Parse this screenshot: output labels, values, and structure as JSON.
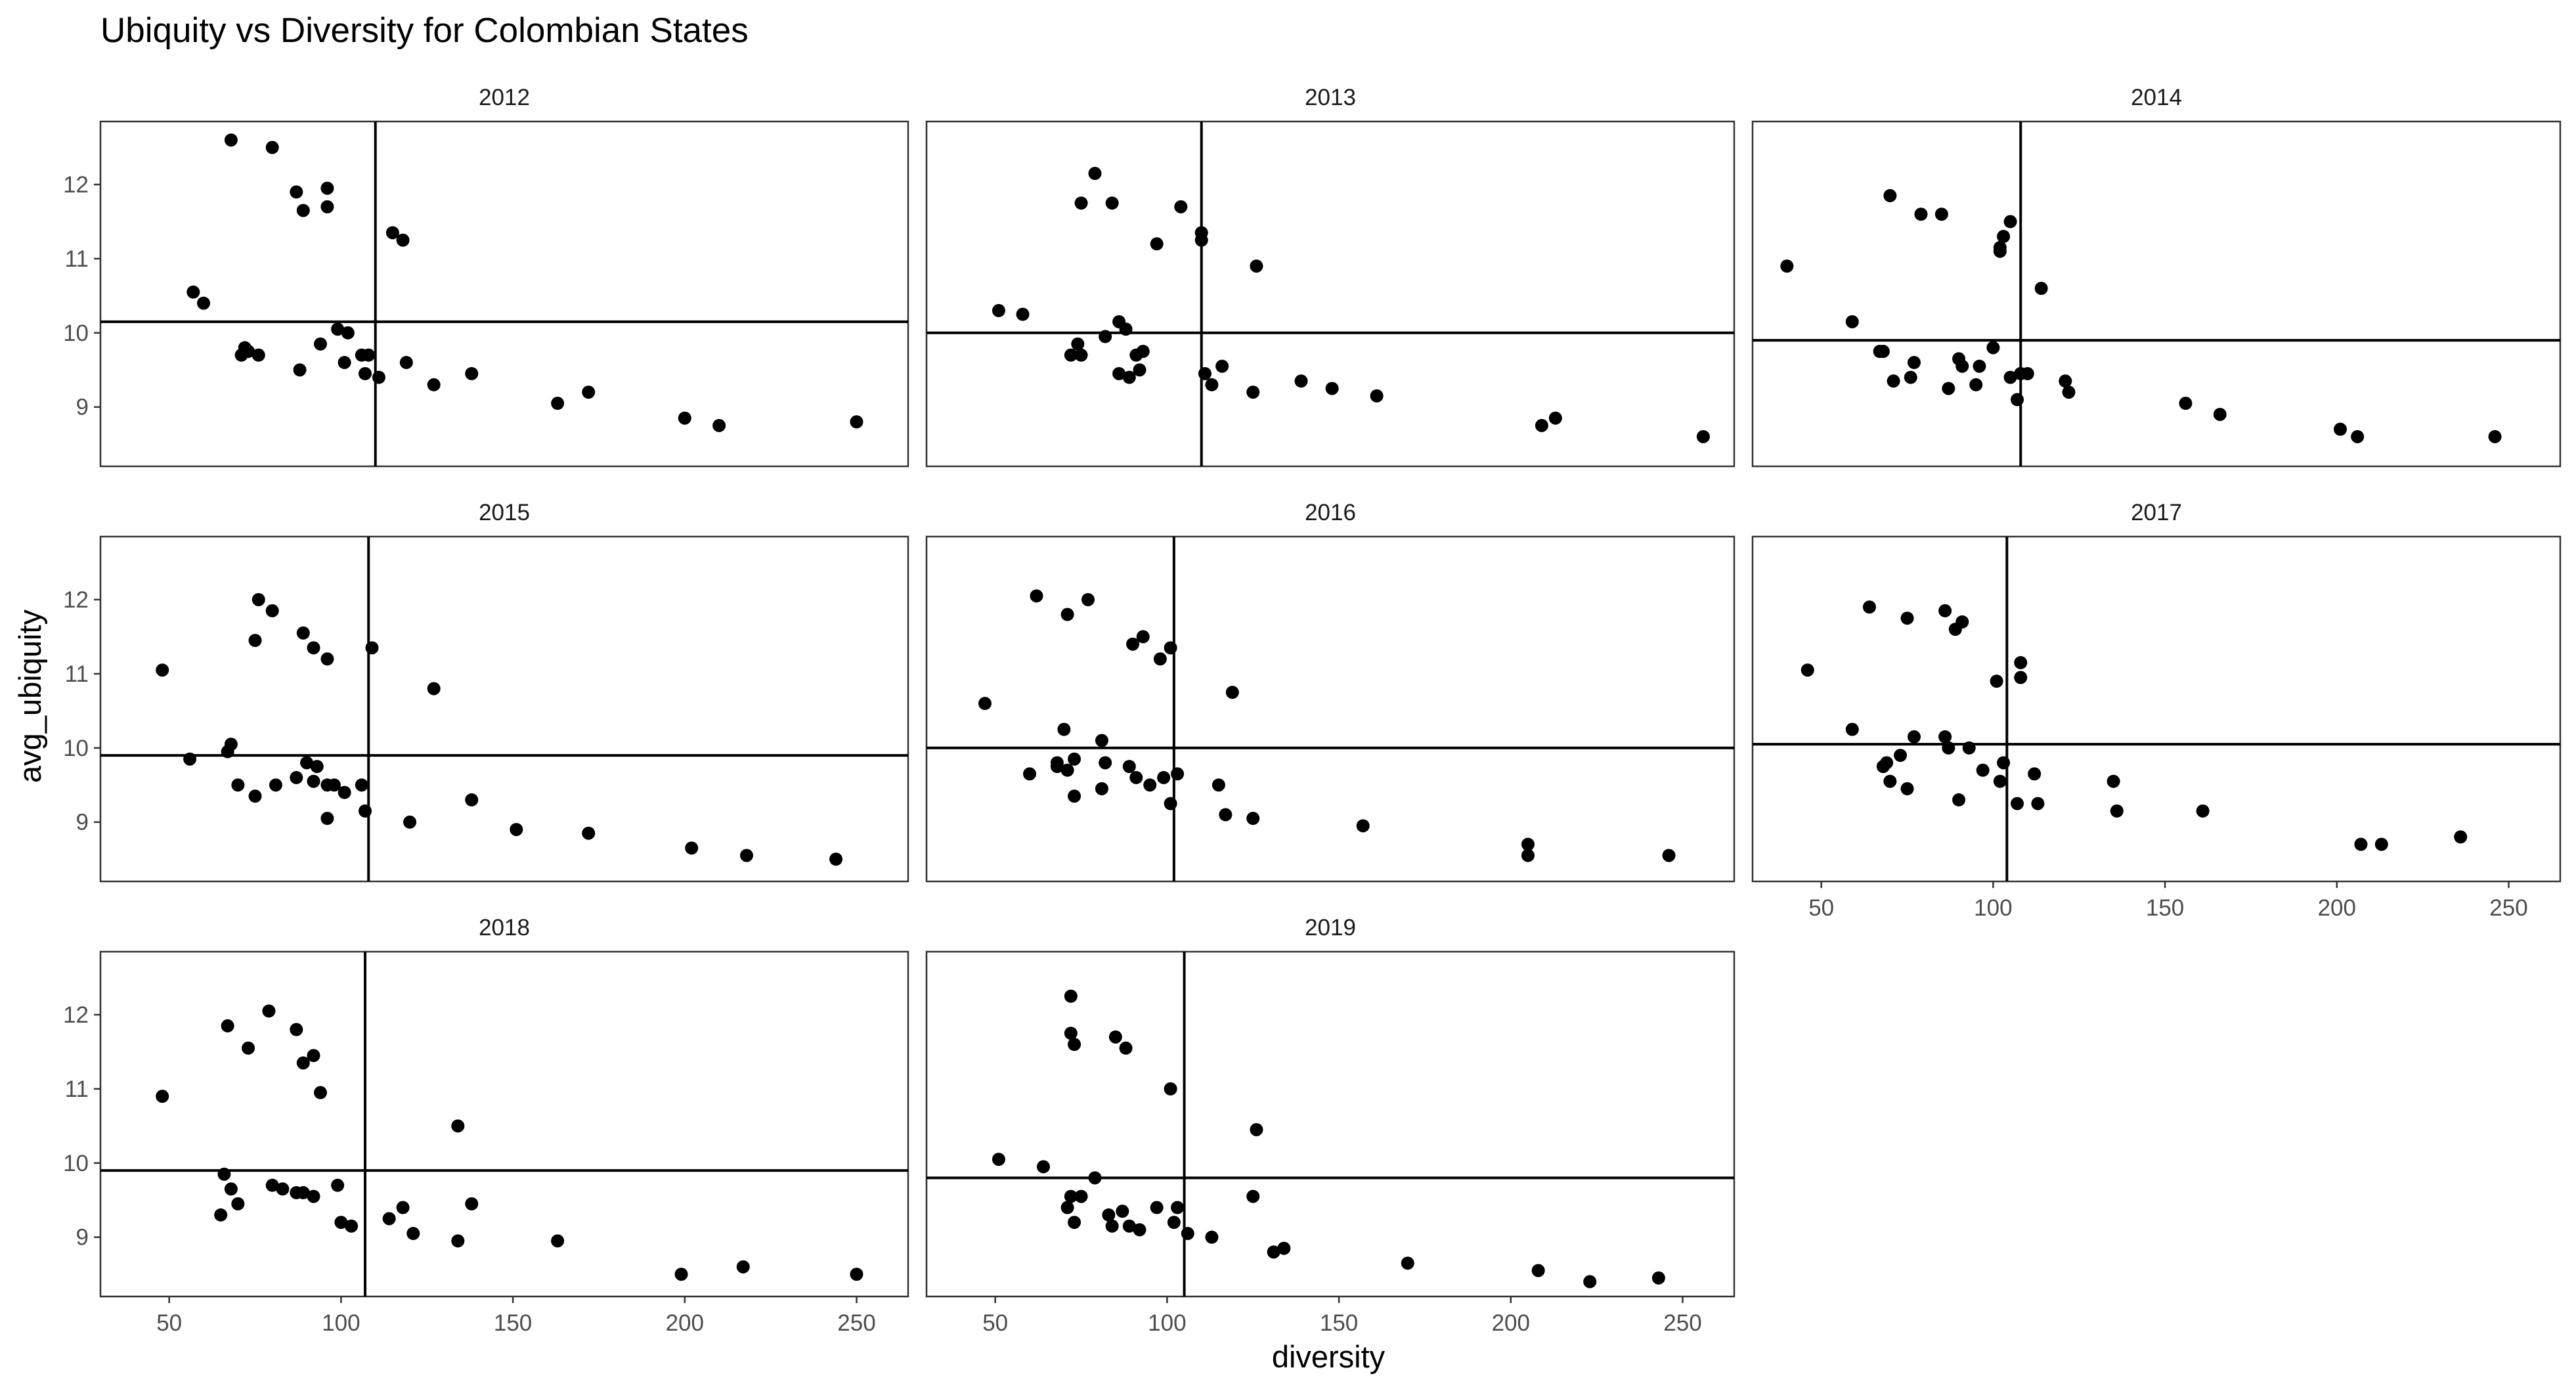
{
  "chart_data": {
    "type": "scatter",
    "title": "Ubiquity vs Diversity for Colombian States",
    "xlabel": "diversity",
    "ylabel": "avg_ubiquity",
    "xlim": [
      30,
      265
    ],
    "ylim": [
      8.2,
      12.85
    ],
    "xticks": [
      50,
      100,
      150,
      200,
      250
    ],
    "yticks": [
      9,
      10,
      11,
      12
    ],
    "grid": false,
    "legend": "none",
    "point_color": "#000000",
    "facets": [
      {
        "label": "2012",
        "mean_x": 110,
        "mean_y": 10.15,
        "points": [
          [
            68,
            12.6
          ],
          [
            80,
            12.5
          ],
          [
            87,
            11.9
          ],
          [
            89,
            11.65
          ],
          [
            96,
            11.95
          ],
          [
            96,
            11.7
          ],
          [
            115,
            11.35
          ],
          [
            118,
            11.25
          ],
          [
            57,
            10.55
          ],
          [
            60,
            10.4
          ],
          [
            72,
            9.8
          ],
          [
            73,
            9.75
          ],
          [
            76,
            9.7
          ],
          [
            71,
            9.7
          ],
          [
            94,
            9.85
          ],
          [
            99,
            10.05
          ],
          [
            102,
            10.0
          ],
          [
            101,
            9.6
          ],
          [
            106,
            9.7
          ],
          [
            108,
            9.7
          ],
          [
            111,
            9.4
          ],
          [
            107,
            9.45
          ],
          [
            119,
            9.6
          ],
          [
            88,
            9.5
          ],
          [
            127,
            9.3
          ],
          [
            138,
            9.45
          ],
          [
            163,
            9.05
          ],
          [
            172,
            9.2
          ],
          [
            200,
            8.85
          ],
          [
            210,
            8.75
          ],
          [
            250,
            8.8
          ]
        ]
      },
      {
        "label": "2013",
        "mean_x": 110,
        "mean_y": 10.0,
        "points": [
          [
            79,
            12.15
          ],
          [
            75,
            11.75
          ],
          [
            84,
            11.75
          ],
          [
            104,
            11.7
          ],
          [
            110,
            11.35
          ],
          [
            110,
            11.25
          ],
          [
            97,
            11.2
          ],
          [
            126,
            10.9
          ],
          [
            51,
            10.3
          ],
          [
            58,
            10.25
          ],
          [
            82,
            9.95
          ],
          [
            86,
            10.15
          ],
          [
            88,
            10.05
          ],
          [
            74,
            9.85
          ],
          [
            72,
            9.7
          ],
          [
            75,
            9.7
          ],
          [
            86,
            9.45
          ],
          [
            89,
            9.4
          ],
          [
            91,
            9.7
          ],
          [
            93,
            9.75
          ],
          [
            92,
            9.5
          ],
          [
            111,
            9.45
          ],
          [
            116,
            9.55
          ],
          [
            113,
            9.3
          ],
          [
            125,
            9.2
          ],
          [
            139,
            9.35
          ],
          [
            148,
            9.25
          ],
          [
            161,
            9.15
          ],
          [
            209,
            8.75
          ],
          [
            213,
            8.85
          ],
          [
            256,
            8.6
          ]
        ]
      },
      {
        "label": "2014",
        "mean_x": 108,
        "mean_y": 9.9,
        "points": [
          [
            70,
            11.85
          ],
          [
            79,
            11.6
          ],
          [
            85,
            11.6
          ],
          [
            102,
            11.1
          ],
          [
            102,
            11.15
          ],
          [
            103,
            11.3
          ],
          [
            105,
            11.5
          ],
          [
            114,
            10.6
          ],
          [
            40,
            10.9
          ],
          [
            59,
            10.15
          ],
          [
            67,
            9.75
          ],
          [
            68,
            9.75
          ],
          [
            77,
            9.6
          ],
          [
            71,
            9.35
          ],
          [
            76,
            9.4
          ],
          [
            90,
            9.65
          ],
          [
            91,
            9.55
          ],
          [
            96,
            9.55
          ],
          [
            100,
            9.8
          ],
          [
            95,
            9.3
          ],
          [
            87,
            9.25
          ],
          [
            105,
            9.4
          ],
          [
            108,
            9.45
          ],
          [
            110,
            9.45
          ],
          [
            107,
            9.1
          ],
          [
            121,
            9.35
          ],
          [
            122,
            9.2
          ],
          [
            156,
            9.05
          ],
          [
            166,
            8.9
          ],
          [
            201,
            8.7
          ],
          [
            206,
            8.6
          ],
          [
            246,
            8.6
          ]
        ]
      },
      {
        "label": "2015",
        "mean_x": 108,
        "mean_y": 9.9,
        "points": [
          [
            76,
            12.0
          ],
          [
            80,
            11.85
          ],
          [
            89,
            11.55
          ],
          [
            75,
            11.45
          ],
          [
            92,
            11.35
          ],
          [
            96,
            11.2
          ],
          [
            109,
            11.35
          ],
          [
            48,
            11.05
          ],
          [
            127,
            10.8
          ],
          [
            68,
            10.05
          ],
          [
            67,
            9.95
          ],
          [
            56,
            9.85
          ],
          [
            70,
            9.5
          ],
          [
            75,
            9.35
          ],
          [
            81,
            9.5
          ],
          [
            87,
            9.6
          ],
          [
            90,
            9.8
          ],
          [
            93,
            9.75
          ],
          [
            92,
            9.55
          ],
          [
            96,
            9.5
          ],
          [
            98,
            9.5
          ],
          [
            101,
            9.4
          ],
          [
            106,
            9.5
          ],
          [
            96,
            9.05
          ],
          [
            107,
            9.15
          ],
          [
            120,
            9.0
          ],
          [
            138,
            9.3
          ],
          [
            151,
            8.9
          ],
          [
            172,
            8.85
          ],
          [
            202,
            8.65
          ],
          [
            218,
            8.55
          ],
          [
            244,
            8.5
          ]
        ]
      },
      {
        "label": "2016",
        "mean_x": 102,
        "mean_y": 10.0,
        "points": [
          [
            62,
            12.05
          ],
          [
            71,
            11.8
          ],
          [
            77,
            12.0
          ],
          [
            93,
            11.5
          ],
          [
            90,
            11.4
          ],
          [
            98,
            11.2
          ],
          [
            101,
            11.35
          ],
          [
            119,
            10.75
          ],
          [
            47,
            10.6
          ],
          [
            70,
            10.25
          ],
          [
            81,
            10.1
          ],
          [
            60,
            9.65
          ],
          [
            68,
            9.75
          ],
          [
            68,
            9.8
          ],
          [
            73,
            9.85
          ],
          [
            71,
            9.7
          ],
          [
            73,
            9.35
          ],
          [
            81,
            9.45
          ],
          [
            82,
            9.8
          ],
          [
            89,
            9.75
          ],
          [
            91,
            9.6
          ],
          [
            95,
            9.5
          ],
          [
            99,
            9.6
          ],
          [
            103,
            9.65
          ],
          [
            101,
            9.25
          ],
          [
            115,
            9.5
          ],
          [
            117,
            9.1
          ],
          [
            125,
            9.05
          ],
          [
            157,
            8.95
          ],
          [
            205,
            8.7
          ],
          [
            205,
            8.55
          ],
          [
            246,
            8.55
          ]
        ]
      },
      {
        "label": "2017",
        "mean_x": 104,
        "mean_y": 10.05,
        "points": [
          [
            64,
            11.9
          ],
          [
            75,
            11.75
          ],
          [
            86,
            11.85
          ],
          [
            89,
            11.6
          ],
          [
            91,
            11.7
          ],
          [
            108,
            11.15
          ],
          [
            108,
            10.95
          ],
          [
            101,
            10.9
          ],
          [
            46,
            11.05
          ],
          [
            59,
            10.25
          ],
          [
            77,
            10.15
          ],
          [
            86,
            10.15
          ],
          [
            87,
            10.0
          ],
          [
            93,
            10.0
          ],
          [
            73,
            9.9
          ],
          [
            69,
            9.8
          ],
          [
            68,
            9.75
          ],
          [
            70,
            9.55
          ],
          [
            75,
            9.45
          ],
          [
            97,
            9.7
          ],
          [
            102,
            9.55
          ],
          [
            103,
            9.8
          ],
          [
            112,
            9.65
          ],
          [
            90,
            9.3
          ],
          [
            107,
            9.25
          ],
          [
            113,
            9.25
          ],
          [
            135,
            9.55
          ],
          [
            136,
            9.15
          ],
          [
            161,
            9.15
          ],
          [
            207,
            8.7
          ],
          [
            213,
            8.7
          ],
          [
            236,
            8.8
          ]
        ]
      },
      {
        "label": "2018",
        "mean_x": 107,
        "mean_y": 9.9,
        "points": [
          [
            79,
            12.05
          ],
          [
            67,
            11.85
          ],
          [
            87,
            11.8
          ],
          [
            73,
            11.55
          ],
          [
            92,
            11.45
          ],
          [
            89,
            11.35
          ],
          [
            94,
            10.95
          ],
          [
            48,
            10.9
          ],
          [
            134,
            10.5
          ],
          [
            66,
            9.85
          ],
          [
            68,
            9.65
          ],
          [
            70,
            9.45
          ],
          [
            65,
            9.3
          ],
          [
            80,
            9.7
          ],
          [
            83,
            9.65
          ],
          [
            87,
            9.6
          ],
          [
            89,
            9.6
          ],
          [
            92,
            9.55
          ],
          [
            99,
            9.7
          ],
          [
            100,
            9.2
          ],
          [
            103,
            9.15
          ],
          [
            114,
            9.25
          ],
          [
            118,
            9.4
          ],
          [
            121,
            9.05
          ],
          [
            134,
            8.95
          ],
          [
            138,
            9.45
          ],
          [
            163,
            8.95
          ],
          [
            199,
            8.5
          ],
          [
            217,
            8.6
          ],
          [
            250,
            8.5
          ]
        ]
      },
      {
        "label": "2019",
        "mean_x": 105,
        "mean_y": 9.8,
        "points": [
          [
            72,
            12.25
          ],
          [
            72,
            11.75
          ],
          [
            73,
            11.6
          ],
          [
            85,
            11.7
          ],
          [
            88,
            11.55
          ],
          [
            101,
            11.0
          ],
          [
            126,
            10.45
          ],
          [
            51,
            10.05
          ],
          [
            64,
            9.95
          ],
          [
            79,
            9.8
          ],
          [
            72,
            9.55
          ],
          [
            75,
            9.55
          ],
          [
            71,
            9.4
          ],
          [
            73,
            9.2
          ],
          [
            83,
            9.3
          ],
          [
            87,
            9.35
          ],
          [
            84,
            9.15
          ],
          [
            89,
            9.15
          ],
          [
            92,
            9.1
          ],
          [
            97,
            9.4
          ],
          [
            103,
            9.4
          ],
          [
            102,
            9.2
          ],
          [
            106,
            9.05
          ],
          [
            113,
            9.0
          ],
          [
            125,
            9.55
          ],
          [
            131,
            8.8
          ],
          [
            134,
            8.85
          ],
          [
            170,
            8.65
          ],
          [
            208,
            8.55
          ],
          [
            223,
            8.4
          ],
          [
            243,
            8.45
          ]
        ]
      }
    ]
  }
}
